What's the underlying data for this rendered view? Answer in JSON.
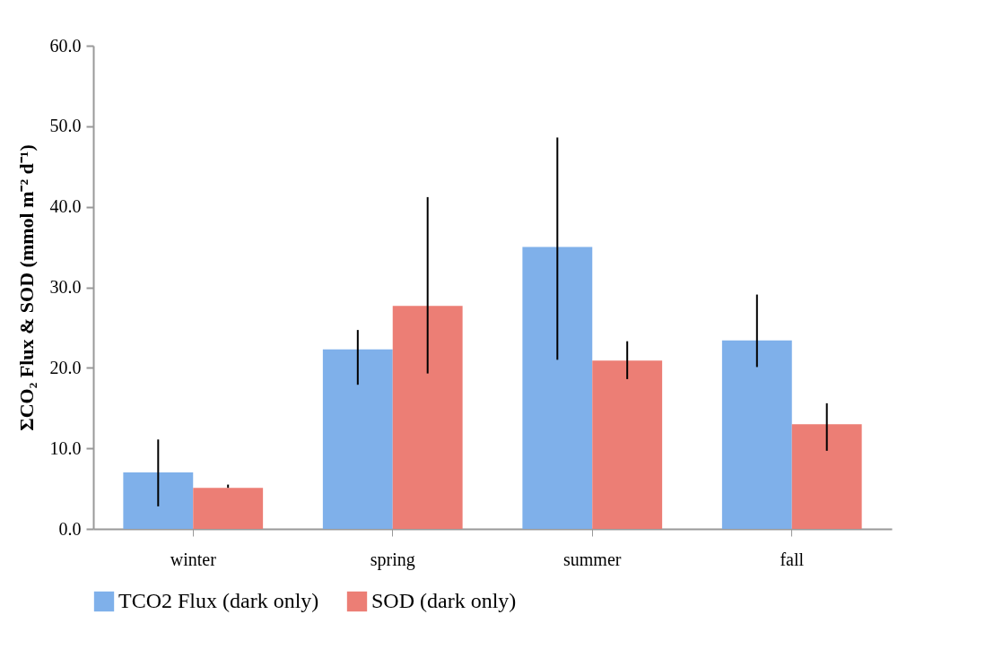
{
  "chart_data": {
    "type": "bar",
    "ylabel": "ΣCO₂ Flux & SOD (mmol m⁻² d⁻¹)",
    "categories": [
      "winter",
      "spring",
      "summer",
      "fall"
    ],
    "series": [
      {
        "name": "TCO2 Flux (dark only)",
        "color": "#7fb0ea",
        "values": [
          7.0,
          22.3,
          35.0,
          23.4
        ],
        "errors": [
          [
            2.8,
            11.1
          ],
          [
            17.9,
            24.7
          ],
          [
            21.0,
            48.6
          ],
          [
            20.1,
            29.1
          ]
        ]
      },
      {
        "name": "SOD (dark only)",
        "color": "#ec7e75",
        "values": [
          5.1,
          27.7,
          20.9,
          13.0
        ],
        "errors": [
          [
            5.1,
            5.5
          ],
          [
            19.3,
            41.2
          ],
          [
            18.6,
            23.3
          ],
          [
            9.7,
            15.6
          ]
        ]
      }
    ],
    "ylim": [
      0,
      60
    ],
    "yticks": [
      {
        "value": 0,
        "label": "0.0"
      },
      {
        "value": 10,
        "label": "10.0"
      },
      {
        "value": 20,
        "label": "20.0"
      },
      {
        "value": 30,
        "label": "30.0"
      },
      {
        "value": 40,
        "label": "40.0"
      },
      {
        "value": 50,
        "label": "50.0"
      },
      {
        "value": 60,
        "label": "60.0"
      }
    ],
    "grid": false,
    "legend": "bottom"
  }
}
